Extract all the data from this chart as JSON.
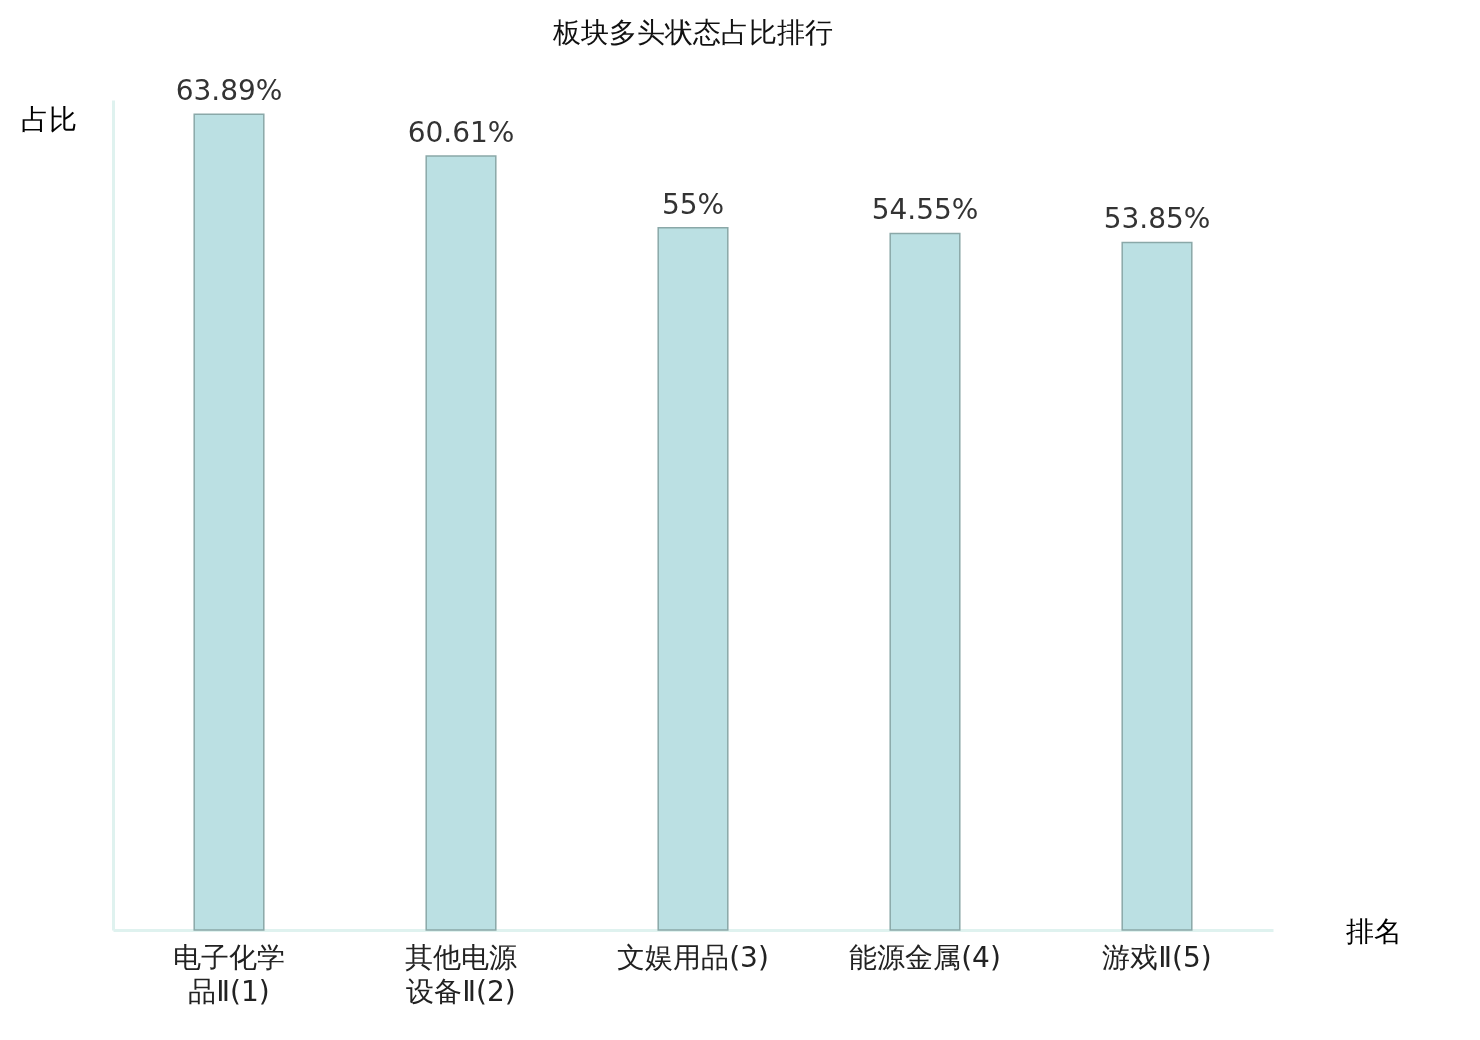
{
  "chart_data": {
    "type": "bar",
    "title": "板块多头状态占比排行",
    "xlabel": "排名",
    "ylabel": "占比",
    "categories": [
      "电子化学品Ⅱ(1)",
      "其他电源设备Ⅱ(2)",
      "文娱用品(3)",
      "能源金属(4)",
      "游戏Ⅱ(5)"
    ],
    "values": [
      63.89,
      60.61,
      55,
      54.55,
      53.85
    ],
    "value_labels": [
      "63.89%",
      "60.61%",
      "55%",
      "54.55%",
      "53.85%"
    ],
    "color": "#bbe0e3"
  }
}
